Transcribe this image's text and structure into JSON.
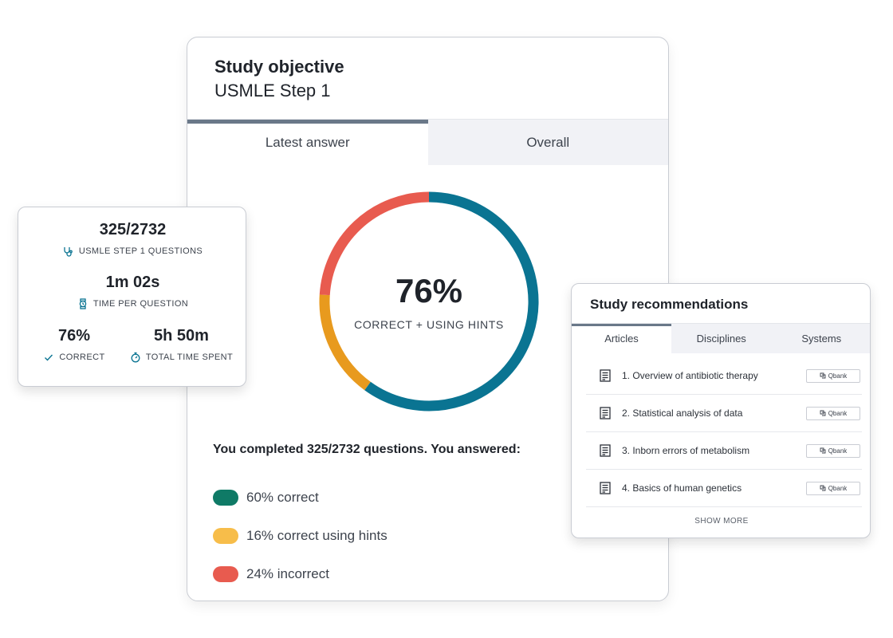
{
  "main": {
    "title": "Study objective",
    "subtitle": "USMLE Step 1",
    "tabs": [
      {
        "label": "Latest answer",
        "active": true
      },
      {
        "label": "Overall",
        "active": false
      }
    ],
    "donut": {
      "value": "76%",
      "label": "CORRECT + USING HINTS"
    },
    "summary": "You completed 325/2732 questions. You answered:",
    "legend": [
      {
        "label": "60% correct",
        "color": "#0f7a66"
      },
      {
        "label": "16% correct using hints",
        "color": "#f7bd4a"
      },
      {
        "label": "24% incorrect",
        "color": "#e85b4f"
      }
    ]
  },
  "chart_data": {
    "type": "pie",
    "variant": "donut",
    "categories": [
      "correct",
      "correct using hints",
      "incorrect"
    ],
    "values": [
      60,
      16,
      24
    ],
    "colors": [
      "#0a7492",
      "#e89a1e",
      "#e85b4f"
    ],
    "center_value": "76%",
    "center_label": "CORRECT + USING HINTS"
  },
  "stats": {
    "questions_value": "325/2732",
    "questions_label": "USMLE STEP 1 QUESTIONS",
    "time_per_value": "1m 02s",
    "time_per_label": "TIME PER QUESTION",
    "correct_value": "76%",
    "correct_label": "CORRECT",
    "total_time_value": "5h 50m",
    "total_time_label": "TOTAL TIME SPENT",
    "icon_color": "#0a7492",
    "icons": [
      "stethoscope-icon",
      "watch-icon",
      "check-icon",
      "stopwatch-icon"
    ]
  },
  "recommendations": {
    "title": "Study recommendations",
    "tabs": [
      {
        "label": "Articles",
        "active": true
      },
      {
        "label": "Disciplines",
        "active": false
      },
      {
        "label": "Systems",
        "active": false
      }
    ],
    "items": [
      {
        "label": "1. Overview of antibiotic therapy",
        "badge": "Qbank"
      },
      {
        "label": "2. Statistical analysis of data",
        "badge": "Qbank"
      },
      {
        "label": "3. Inborn errors of metabolism",
        "badge": "Qbank"
      },
      {
        "label": "4. Basics of human genetics",
        "badge": "Qbank"
      }
    ],
    "show_more": "SHOW MORE"
  }
}
